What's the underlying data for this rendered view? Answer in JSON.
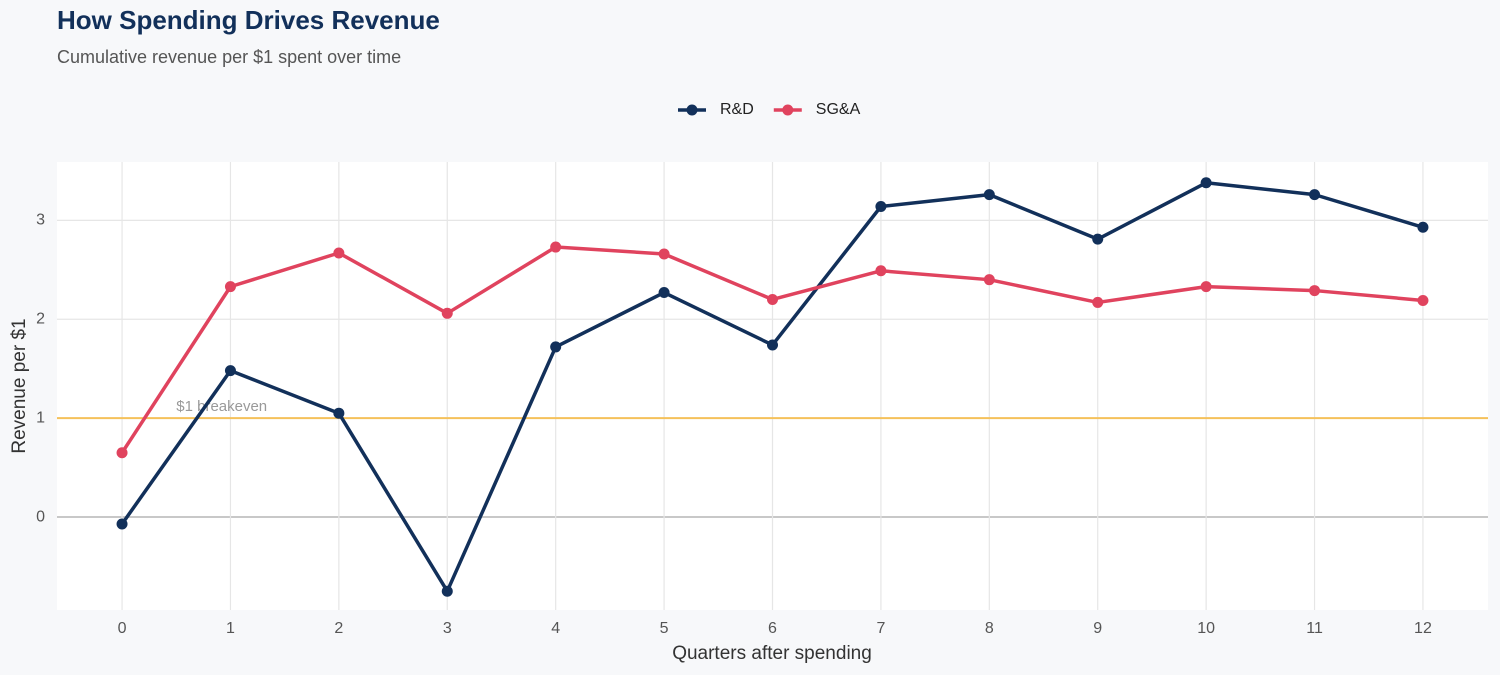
{
  "chart_data": {
    "type": "line",
    "title": "How Spending Drives Revenue",
    "subtitle": "Cumulative revenue per $1 spent over time",
    "x_label": "Quarters after spending",
    "y_label": "Revenue per $1",
    "x": [
      0,
      1,
      2,
      3,
      4,
      5,
      6,
      7,
      8,
      9,
      10,
      11,
      12
    ],
    "series": [
      {
        "name": "R&D",
        "color": "#12305a",
        "values": [
          -0.07,
          1.48,
          1.05,
          -0.75,
          1.72,
          2.27,
          1.74,
          3.14,
          3.26,
          2.81,
          3.38,
          3.26,
          2.93
        ]
      },
      {
        "name": "SG&A",
        "color": "#e0435e",
        "values": [
          0.65,
          2.33,
          2.67,
          2.06,
          2.73,
          2.66,
          2.2,
          2.49,
          2.4,
          2.17,
          2.33,
          2.29,
          2.19
        ]
      }
    ],
    "reference_line": {
      "value": 1,
      "label": "$1 breakeven",
      "color": "#f5c15a"
    },
    "xlim": [
      -0.6,
      12.6
    ],
    "ylim": [
      -0.94,
      3.59
    ],
    "xticks": [
      0,
      1,
      2,
      3,
      4,
      5,
      6,
      7,
      8,
      9,
      10,
      11,
      12
    ],
    "yticks": [
      0,
      1,
      2,
      3
    ],
    "grid": true,
    "legend_position": "top"
  }
}
